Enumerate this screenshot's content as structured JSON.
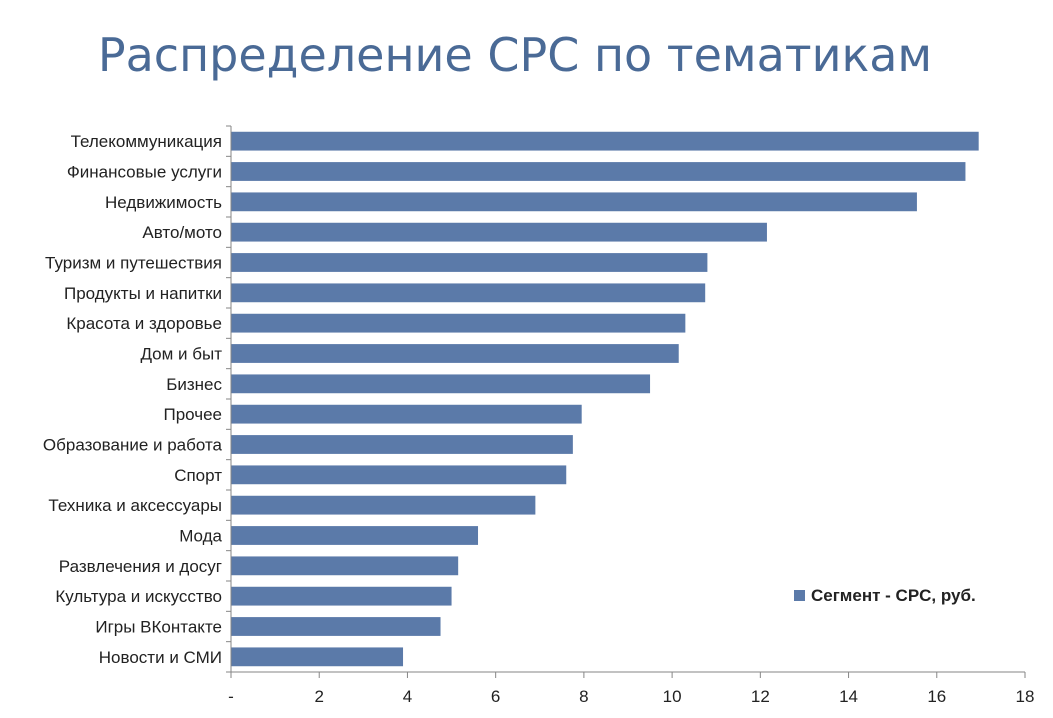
{
  "chart_data": {
    "type": "bar",
    "orientation": "horizontal",
    "title": "Распределение CPC по тематикам",
    "categories": [
      "Телекоммуникация",
      "Финансовые услуги",
      "Недвижимость",
      "Авто/мото",
      "Туризм и путешествия",
      "Продукты и напитки",
      "Красота и здоровье",
      "Дом и быт",
      "Бизнес",
      "Прочее",
      "Образование и работа",
      "Спорт",
      "Техника и аксессуары",
      "Мода",
      "Развлечения и досуг",
      "Культура и искусство",
      "Игры ВКонтакте",
      "Новости и СМИ"
    ],
    "series": [
      {
        "name": "Сегмент - CPC, руб.",
        "values": [
          16.95,
          16.65,
          15.55,
          12.15,
          10.8,
          10.75,
          10.3,
          10.15,
          9.5,
          7.95,
          7.75,
          7.6,
          6.9,
          5.6,
          5.15,
          5.0,
          4.75,
          3.9
        ]
      }
    ],
    "xlim": [
      0,
      18
    ],
    "x_ticks": [
      "-",
      "2",
      "4",
      "6",
      "8",
      "10",
      "12",
      "14",
      "16",
      "18"
    ],
    "grid": false,
    "legend": "right",
    "colors": {
      "bar": "#5b7aa9",
      "title": "#4a6a96",
      "axis": "#868686",
      "text": "#222222"
    }
  }
}
